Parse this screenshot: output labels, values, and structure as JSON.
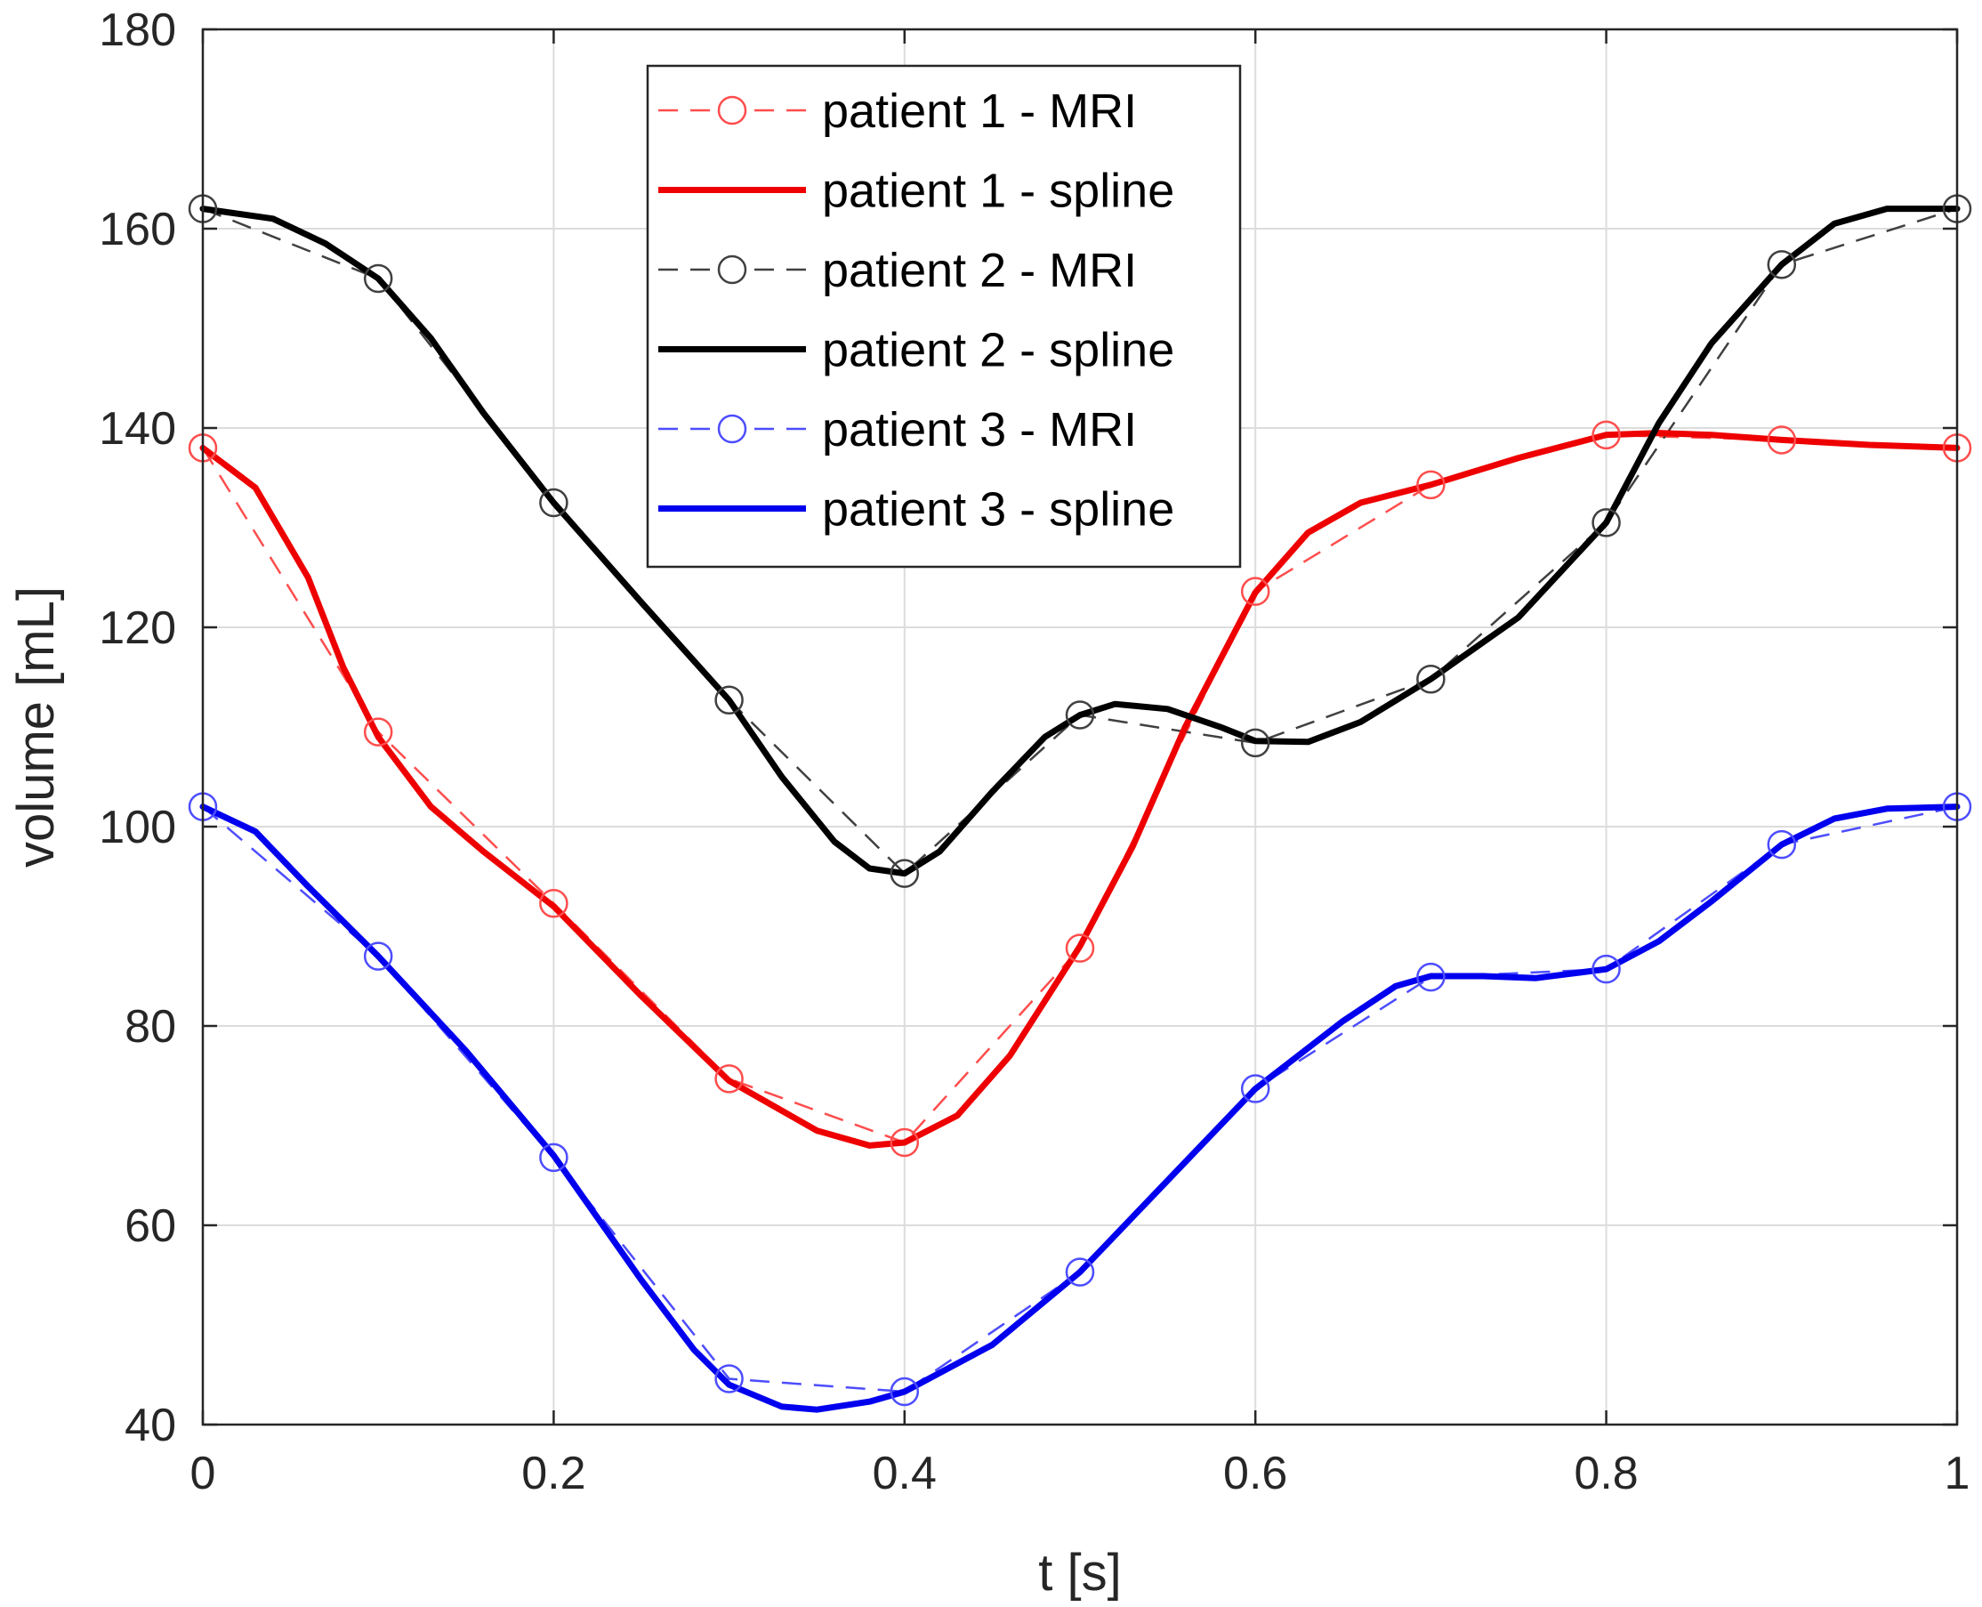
{
  "chart_data": {
    "type": "line",
    "title": "",
    "xlabel": "t [s]",
    "ylabel": "volume [mL]",
    "xlim": [
      0,
      1
    ],
    "ylim": [
      40,
      180
    ],
    "xticks": [
      0,
      0.2,
      0.4,
      0.6,
      0.8,
      1
    ],
    "xtick_labels": [
      "0",
      "0.2",
      "0.4",
      "0.6",
      "0.8",
      "1"
    ],
    "yticks": [
      40,
      60,
      80,
      100,
      120,
      140,
      160,
      180
    ],
    "ytick_labels": [
      "40",
      "60",
      "80",
      "100",
      "120",
      "140",
      "160",
      "180"
    ],
    "grid": true,
    "legend_position": "top-center",
    "x": [
      0,
      0.1,
      0.2,
      0.3,
      0.4,
      0.5,
      0.6,
      0.7,
      0.8,
      0.9,
      1.0
    ],
    "series": [
      {
        "name": "patient 1 - MRI",
        "style": "dashed-marker",
        "color": "#ff4d4d",
        "values": [
          138,
          109.5,
          92.3,
          74.7,
          68.3,
          87.8,
          123.6,
          134.3,
          139.3,
          138.8,
          138
        ]
      },
      {
        "name": "patient 1 - spline",
        "style": "solid",
        "color": "#ee0000",
        "x": [
          0,
          0.03,
          0.06,
          0.08,
          0.1,
          0.13,
          0.16,
          0.2,
          0.25,
          0.3,
          0.35,
          0.38,
          0.4,
          0.43,
          0.46,
          0.5,
          0.53,
          0.56,
          0.6,
          0.63,
          0.66,
          0.7,
          0.75,
          0.8,
          0.83,
          0.86,
          0.9,
          0.95,
          1.0
        ],
        "values": [
          138,
          134,
          125,
          116,
          109,
          102,
          97.5,
          92,
          83,
          74.5,
          69.5,
          68,
          68.3,
          71,
          77,
          88,
          98,
          110,
          123.5,
          129.5,
          132.5,
          134.3,
          137,
          139.3,
          139.5,
          139.3,
          138.8,
          138.3,
          138
        ]
      },
      {
        "name": "patient 2 - MRI",
        "style": "dashed-marker",
        "color": "#404040",
        "values": [
          162,
          155,
          132.5,
          112.7,
          95.3,
          111.2,
          108.4,
          114.8,
          130.5,
          156.4,
          162
        ]
      },
      {
        "name": "patient 2 - spline",
        "style": "solid",
        "color": "#000000",
        "x": [
          0,
          0.04,
          0.07,
          0.1,
          0.13,
          0.16,
          0.2,
          0.25,
          0.3,
          0.33,
          0.36,
          0.38,
          0.4,
          0.42,
          0.45,
          0.48,
          0.5,
          0.52,
          0.55,
          0.58,
          0.6,
          0.63,
          0.66,
          0.7,
          0.75,
          0.8,
          0.83,
          0.86,
          0.9,
          0.93,
          0.96,
          1.0
        ],
        "values": [
          162,
          161,
          158.5,
          155,
          149,
          141.5,
          132.5,
          122.5,
          112.7,
          105,
          98.5,
          95.8,
          95.3,
          97.5,
          103.5,
          109,
          111.2,
          112.3,
          111.8,
          110,
          108.6,
          108.5,
          110.5,
          114.8,
          121,
          130.5,
          140.5,
          148.5,
          156.4,
          160.5,
          162,
          162
        ]
      },
      {
        "name": "patient 3 - MRI",
        "style": "dashed-marker",
        "color": "#4d4dff",
        "values": [
          102,
          87,
          66.8,
          44.6,
          43.3,
          55.3,
          73.7,
          84.9,
          85.7,
          98.2,
          102
        ]
      },
      {
        "name": "patient 3 - spline",
        "style": "solid",
        "color": "#0000ee",
        "x": [
          0,
          0.03,
          0.06,
          0.1,
          0.15,
          0.2,
          0.25,
          0.28,
          0.3,
          0.33,
          0.35,
          0.38,
          0.4,
          0.45,
          0.5,
          0.55,
          0.6,
          0.65,
          0.68,
          0.7,
          0.73,
          0.76,
          0.8,
          0.83,
          0.86,
          0.9,
          0.93,
          0.96,
          1.0
        ],
        "values": [
          102,
          99.5,
          94,
          87,
          77.5,
          67,
          54.5,
          47.5,
          44,
          41.8,
          41.5,
          42.3,
          43.3,
          48,
          55.3,
          64.5,
          73.7,
          80.5,
          84,
          85,
          85,
          84.8,
          85.7,
          88.5,
          92.5,
          98.2,
          100.8,
          101.8,
          102
        ]
      }
    ]
  }
}
